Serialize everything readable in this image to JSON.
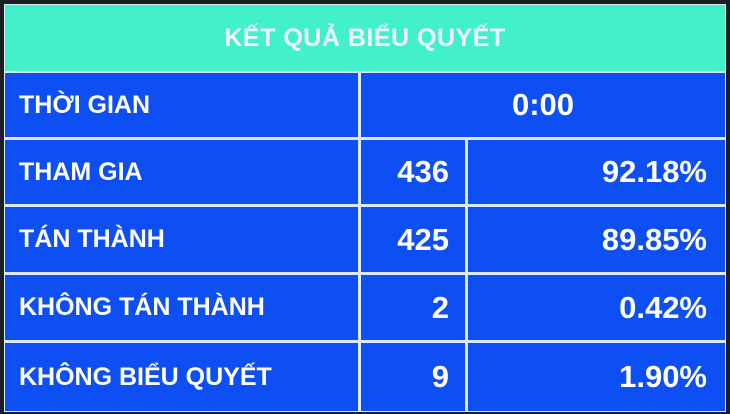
{
  "title": "KẾT QUẢ BIỂU QUYẾT",
  "time": {
    "label": "THỜI GIAN",
    "value": "0:00"
  },
  "rows": [
    {
      "label": "THAM GIA",
      "count": "436",
      "percent": "92.18%"
    },
    {
      "label": "TÁN THÀNH",
      "count": "425",
      "percent": "89.85%"
    },
    {
      "label": "KHÔNG TÁN THÀNH",
      "count": "2",
      "percent": "0.42%"
    },
    {
      "label": "KHÔNG BIỂU QUYẾT",
      "count": "9",
      "percent": "1.90%"
    }
  ],
  "colors": {
    "header": "#42f0c9",
    "cell": "#0d4ff2",
    "text": "#ffffff"
  }
}
